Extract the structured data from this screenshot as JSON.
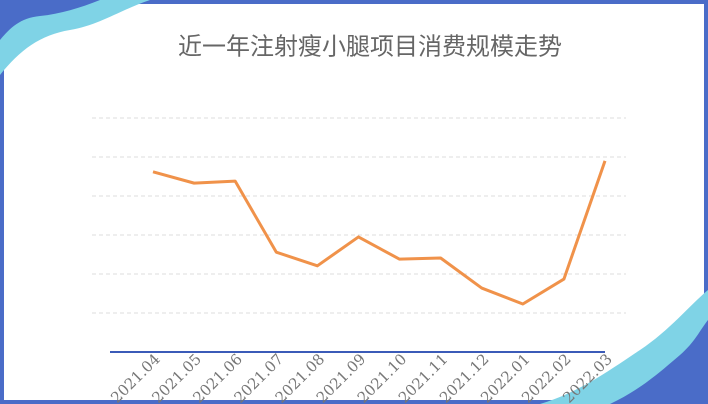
{
  "chart_data": {
    "type": "line",
    "title": "近一年注射瘦小腿项目消费规模走势",
    "categories": [
      "2021.04",
      "2021.05",
      "2021.06",
      "2021.07",
      "2021.08",
      "2021.09",
      "2021.10",
      "2021.11",
      "2021.12",
      "2022.01",
      "2022.02",
      "2022.03"
    ],
    "values": [
      4.62,
      4.33,
      4.38,
      2.56,
      2.21,
      2.95,
      2.38,
      2.41,
      1.64,
      1.23,
      1.87,
      4.9
    ],
    "color": "#f0924a",
    "ylim": [
      0,
      6
    ],
    "yticks": [
      1,
      2,
      3,
      4,
      5,
      6
    ],
    "grid": true
  }
}
